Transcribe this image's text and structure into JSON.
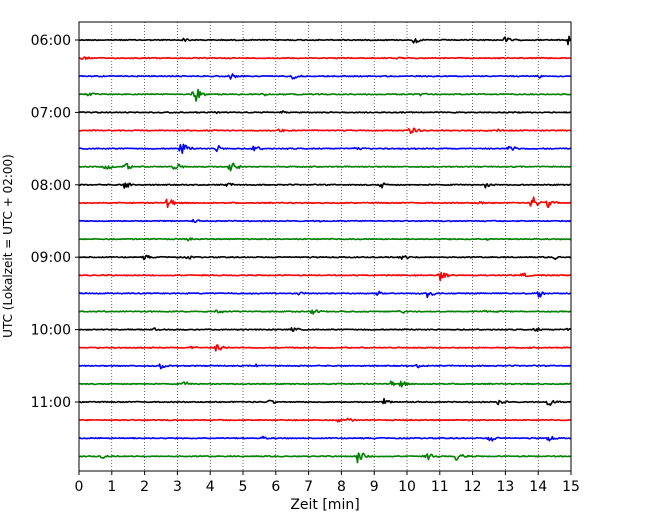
{
  "chart_data": {
    "type": "line",
    "title": "",
    "xlabel": "Zeit  [min]",
    "ylabel": "UTC (Lokalzeit = UTC + 02:00)",
    "xlim": [
      0,
      15
    ],
    "x_ticks": [
      0,
      1,
      2,
      3,
      4,
      5,
      6,
      7,
      8,
      9,
      10,
      11,
      12,
      13,
      14,
      15
    ],
    "y_tick_labels": [
      "06:00",
      "07:00",
      "08:00",
      "09:00",
      "10:00",
      "11:00"
    ],
    "row_interval_min": 15,
    "color_cycle": [
      "#000000",
      "#ff0000",
      "#0000ff",
      "#008000"
    ],
    "grid": {
      "x": true,
      "style": "dotted"
    },
    "rows": [
      {
        "start": "06:00",
        "color": "#000000",
        "events": [
          [
            3.2,
            0.6
          ],
          [
            10.2,
            1.0
          ],
          [
            13.0,
            1.0
          ],
          [
            14.9,
            1.6
          ]
        ]
      },
      {
        "start": "06:15",
        "color": "#ff0000",
        "events": [
          [
            0.1,
            0.6
          ],
          [
            9.7,
            0.5
          ]
        ]
      },
      {
        "start": "06:30",
        "color": "#0000ff",
        "events": [
          [
            4.6,
            0.9
          ],
          [
            6.5,
            0.8
          ],
          [
            14.0,
            0.6
          ]
        ]
      },
      {
        "start": "06:45",
        "color": "#008000",
        "events": [
          [
            0.3,
            0.5
          ],
          [
            3.5,
            2.4
          ],
          [
            5.6,
            0.5
          ],
          [
            10.4,
            0.6
          ]
        ]
      },
      {
        "start": "07:00",
        "color": "#000000",
        "events": [
          [
            4.1,
            0.6
          ],
          [
            6.2,
            0.4
          ]
        ]
      },
      {
        "start": "07:15",
        "color": "#ff0000",
        "events": [
          [
            6.1,
            0.6
          ],
          [
            10.1,
            1.6
          ],
          [
            12.7,
            0.7
          ]
        ]
      },
      {
        "start": "07:30",
        "color": "#0000ff",
        "events": [
          [
            3.1,
            1.9
          ],
          [
            4.2,
            1.0
          ],
          [
            5.3,
            1.0
          ],
          [
            8.4,
            0.9
          ],
          [
            13.1,
            1.2
          ]
        ]
      },
      {
        "start": "07:45",
        "color": "#008000",
        "events": [
          [
            0.8,
            1.0
          ],
          [
            1.4,
            1.1
          ],
          [
            2.9,
            1.2
          ],
          [
            4.6,
            2.0
          ]
        ]
      },
      {
        "start": "08:00",
        "color": "#000000",
        "events": [
          [
            1.4,
            1.3
          ],
          [
            4.5,
            0.7
          ],
          [
            9.2,
            1.0
          ],
          [
            12.4,
            0.8
          ]
        ]
      },
      {
        "start": "08:15",
        "color": "#ff0000",
        "events": [
          [
            2.7,
            2.0
          ],
          [
            12.2,
            0.5
          ],
          [
            13.8,
            1.9
          ],
          [
            14.3,
            1.4
          ]
        ]
      },
      {
        "start": "08:30",
        "color": "#0000ff",
        "events": [
          [
            3.5,
            0.5
          ],
          [
            7.3,
            0.5
          ]
        ]
      },
      {
        "start": "08:45",
        "color": "#008000",
        "events": [
          [
            3.3,
            0.5
          ],
          [
            12.4,
            0.6
          ]
        ]
      },
      {
        "start": "09:00",
        "color": "#000000",
        "events": [
          [
            2.0,
            0.7
          ],
          [
            3.3,
            0.6
          ],
          [
            9.8,
            1.0
          ],
          [
            14.5,
            0.5
          ]
        ]
      },
      {
        "start": "09:15",
        "color": "#ff0000",
        "events": [
          [
            11.0,
            1.3
          ],
          [
            13.5,
            0.8
          ]
        ]
      },
      {
        "start": "09:30",
        "color": "#0000ff",
        "events": [
          [
            6.6,
            0.9
          ],
          [
            9.1,
            0.9
          ],
          [
            10.6,
            1.6
          ],
          [
            14.0,
            1.2
          ]
        ]
      },
      {
        "start": "09:45",
        "color": "#008000",
        "events": [
          [
            4.2,
            0.7
          ],
          [
            7.1,
            0.9
          ],
          [
            9.8,
            0.6
          ],
          [
            12.3,
            0.6
          ]
        ]
      },
      {
        "start": "10:00",
        "color": "#000000",
        "events": [
          [
            2.3,
            0.6
          ],
          [
            6.5,
            0.7
          ],
          [
            13.9,
            0.7
          ],
          [
            14.9,
            0.5
          ]
        ]
      },
      {
        "start": "10:15",
        "color": "#ff0000",
        "events": [
          [
            3.4,
            0.6
          ],
          [
            4.2,
            1.3
          ]
        ]
      },
      {
        "start": "10:30",
        "color": "#0000ff",
        "events": [
          [
            2.5,
            0.9
          ],
          [
            5.4,
            0.5
          ],
          [
            10.3,
            0.5
          ]
        ]
      },
      {
        "start": "10:45",
        "color": "#008000",
        "events": [
          [
            3.2,
            0.6
          ],
          [
            9.5,
            1.0
          ],
          [
            9.8,
            0.9
          ]
        ]
      },
      {
        "start": "11:00",
        "color": "#000000",
        "events": [
          [
            5.8,
            0.7
          ],
          [
            9.3,
            0.8
          ],
          [
            12.8,
            0.9
          ],
          [
            14.3,
            1.2
          ]
        ]
      },
      {
        "start": "11:15",
        "color": "#ff0000",
        "events": [
          [
            7.9,
            0.7
          ],
          [
            8.2,
            0.5
          ]
        ]
      },
      {
        "start": "11:30",
        "color": "#0000ff",
        "events": [
          [
            5.6,
            0.5
          ],
          [
            12.5,
            1.0
          ],
          [
            14.3,
            0.9
          ]
        ]
      },
      {
        "start": "11:45",
        "color": "#008000",
        "events": [
          [
            0.7,
            0.7
          ],
          [
            8.5,
            1.8
          ],
          [
            10.6,
            1.2
          ],
          [
            11.5,
            1.3
          ]
        ]
      }
    ]
  }
}
